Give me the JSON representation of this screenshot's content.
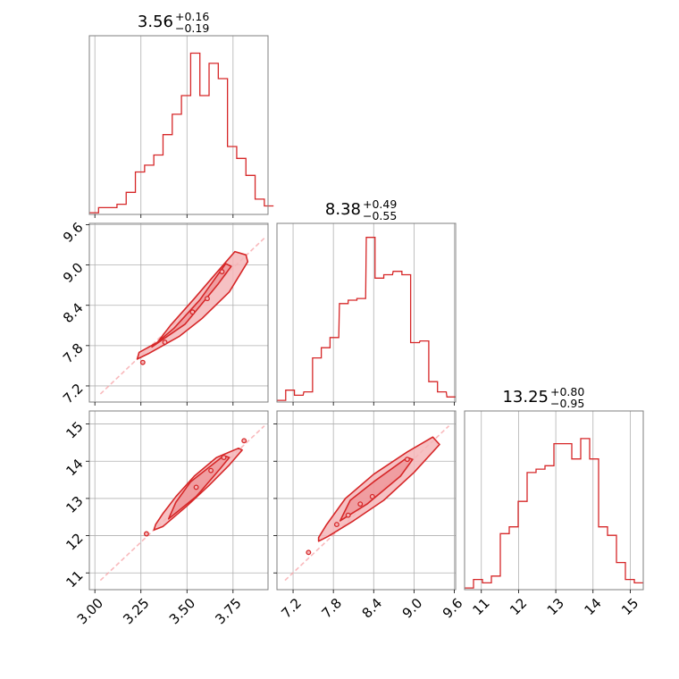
{
  "chart_data": {
    "type": "corner",
    "color": "#d62728",
    "fill_color": "#f4b6b8",
    "grid": true,
    "parameters": [
      {
        "name": "p0",
        "median": "3.56",
        "plus": "+0.16",
        "minus": "−0.19",
        "range": [
          2.97,
          3.94
        ],
        "ticks": [
          3.0,
          3.25,
          3.5,
          3.75
        ],
        "tick_labels": [
          "3.00",
          "3.25",
          "3.50",
          "3.75"
        ],
        "hist": [
          [
            2.97,
            0.01
          ],
          [
            3.02,
            0.04
          ],
          [
            3.07,
            0.04
          ],
          [
            3.12,
            0.06
          ],
          [
            3.17,
            0.13
          ],
          [
            3.22,
            0.25
          ],
          [
            3.27,
            0.29
          ],
          [
            3.32,
            0.35
          ],
          [
            3.37,
            0.47
          ],
          [
            3.42,
            0.59
          ],
          [
            3.47,
            0.7
          ],
          [
            3.52,
            0.95
          ],
          [
            3.57,
            0.7
          ],
          [
            3.62,
            0.89
          ],
          [
            3.67,
            0.8
          ],
          [
            3.72,
            0.4
          ],
          [
            3.77,
            0.33
          ],
          [
            3.82,
            0.23
          ],
          [
            3.87,
            0.09
          ],
          [
            3.92,
            0.05
          ]
        ]
      },
      {
        "name": "p1",
        "median": "8.38",
        "plus": "+0.49",
        "minus": "−0.55",
        "range": [
          6.96,
          9.62
        ],
        "ticks": [
          7.2,
          7.8,
          8.4,
          9.0,
          9.6
        ],
        "tick_labels": [
          "7.2",
          "7.8",
          "8.4",
          "9.0",
          "9.6"
        ],
        "hist": [
          [
            6.96,
            0.01
          ],
          [
            7.09,
            0.07
          ],
          [
            7.22,
            0.04
          ],
          [
            7.36,
            0.06
          ],
          [
            7.49,
            0.26
          ],
          [
            7.62,
            0.32
          ],
          [
            7.75,
            0.38
          ],
          [
            7.89,
            0.58
          ],
          [
            8.02,
            0.6
          ],
          [
            8.15,
            0.61
          ],
          [
            8.29,
            0.97
          ],
          [
            8.42,
            0.73
          ],
          [
            8.55,
            0.75
          ],
          [
            8.69,
            0.77
          ],
          [
            8.82,
            0.75
          ],
          [
            8.95,
            0.35
          ],
          [
            9.09,
            0.36
          ],
          [
            9.22,
            0.12
          ],
          [
            9.35,
            0.06
          ],
          [
            9.49,
            0.03
          ]
        ]
      },
      {
        "name": "p2",
        "median": "13.25",
        "plus": "+0.80",
        "minus": "−0.95",
        "range": [
          10.55,
          15.35
        ],
        "ticks": [
          11,
          12,
          13,
          14,
          15
        ],
        "tick_labels": [
          "11",
          "12",
          "13",
          "14",
          "15"
        ],
        "hist": [
          [
            10.55,
            0.01
          ],
          [
            10.79,
            0.06
          ],
          [
            11.03,
            0.04
          ],
          [
            11.27,
            0.08
          ],
          [
            11.51,
            0.33
          ],
          [
            11.75,
            0.37
          ],
          [
            11.99,
            0.52
          ],
          [
            12.23,
            0.69
          ],
          [
            12.47,
            0.71
          ],
          [
            12.71,
            0.73
          ],
          [
            12.95,
            0.86
          ],
          [
            13.19,
            0.86
          ],
          [
            13.43,
            0.77
          ],
          [
            13.67,
            0.89
          ],
          [
            13.91,
            0.77
          ],
          [
            14.15,
            0.37
          ],
          [
            14.39,
            0.32
          ],
          [
            14.63,
            0.16
          ],
          [
            14.87,
            0.06
          ],
          [
            15.11,
            0.04
          ]
        ]
      }
    ],
    "pairs": [
      {
        "x_param": 0,
        "y_param": 1,
        "trend": [
          [
            3.03,
            7.08
          ],
          [
            3.92,
            9.4
          ]
        ],
        "points": [
          [
            3.26,
            7.55
          ],
          [
            3.38,
            7.85
          ],
          [
            3.53,
            8.3
          ],
          [
            3.61,
            8.5
          ],
          [
            3.69,
            8.9
          ]
        ],
        "inner": [
          [
            3.31,
            7.78
          ],
          [
            3.49,
            8.12
          ],
          [
            3.67,
            8.72
          ],
          [
            3.74,
            8.98
          ],
          [
            3.71,
            9.02
          ],
          [
            3.57,
            8.48
          ],
          [
            3.43,
            8.06
          ]
        ],
        "outer": [
          [
            3.23,
            7.6
          ],
          [
            3.29,
            7.68
          ],
          [
            3.46,
            7.94
          ],
          [
            3.58,
            8.2
          ],
          [
            3.73,
            8.6
          ],
          [
            3.83,
            9.05
          ],
          [
            3.82,
            9.15
          ],
          [
            3.76,
            9.2
          ],
          [
            3.64,
            8.82
          ],
          [
            3.54,
            8.5
          ],
          [
            3.41,
            8.1
          ],
          [
            3.34,
            7.85
          ],
          [
            3.24,
            7.7
          ]
        ]
      },
      {
        "x_param": 0,
        "y_param": 2,
        "trend": [
          [
            3.03,
            10.8
          ],
          [
            3.92,
            14.95
          ]
        ],
        "points": [
          [
            3.28,
            12.05
          ],
          [
            3.55,
            13.3
          ],
          [
            3.63,
            13.75
          ],
          [
            3.7,
            14.1
          ],
          [
            3.81,
            14.55
          ]
        ],
        "inner": [
          [
            3.4,
            12.45
          ],
          [
            3.55,
            13.05
          ],
          [
            3.68,
            13.8
          ],
          [
            3.73,
            14.1
          ],
          [
            3.7,
            14.15
          ],
          [
            3.52,
            13.45
          ],
          [
            3.44,
            12.9
          ]
        ],
        "outer": [
          [
            3.32,
            12.15
          ],
          [
            3.37,
            12.25
          ],
          [
            3.5,
            12.8
          ],
          [
            3.62,
            13.35
          ],
          [
            3.73,
            13.9
          ],
          [
            3.8,
            14.3
          ],
          [
            3.78,
            14.35
          ],
          [
            3.66,
            14.1
          ],
          [
            3.54,
            13.6
          ],
          [
            3.44,
            13.05
          ],
          [
            3.37,
            12.6
          ],
          [
            3.33,
            12.3
          ]
        ]
      },
      {
        "x_param": 1,
        "y_param": 2,
        "trend": [
          [
            7.08,
            10.8
          ],
          [
            9.52,
            14.95
          ]
        ],
        "points": [
          [
            7.43,
            11.55
          ],
          [
            7.85,
            12.3
          ],
          [
            8.02,
            12.55
          ],
          [
            8.2,
            12.85
          ],
          [
            8.38,
            13.05
          ],
          [
            8.9,
            14.05
          ]
        ],
        "inner": [
          [
            7.9,
            12.4
          ],
          [
            8.3,
            12.85
          ],
          [
            8.8,
            13.6
          ],
          [
            8.98,
            14.05
          ],
          [
            8.9,
            14.1
          ],
          [
            8.4,
            13.45
          ],
          [
            8.05,
            12.95
          ]
        ],
        "outer": [
          [
            7.58,
            11.85
          ],
          [
            7.72,
            11.98
          ],
          [
            8.1,
            12.4
          ],
          [
            8.55,
            12.95
          ],
          [
            9.0,
            13.7
          ],
          [
            9.38,
            14.45
          ],
          [
            9.28,
            14.65
          ],
          [
            8.9,
            14.25
          ],
          [
            8.4,
            13.65
          ],
          [
            7.98,
            13.0
          ],
          [
            7.7,
            12.3
          ],
          [
            7.58,
            11.95
          ]
        ]
      }
    ]
  }
}
